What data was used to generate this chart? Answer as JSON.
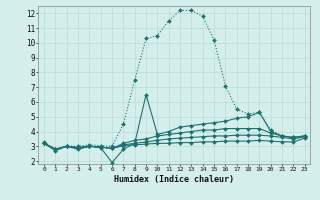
{
  "xlabel": "Humidex (Indice chaleur)",
  "bg_color": "#d4eeeb",
  "line_color": "#1e7070",
  "grid_color": "#b8ddd8",
  "xlim": [
    -0.5,
    23.5
  ],
  "ylim": [
    1.8,
    12.5
  ],
  "yticks": [
    2,
    3,
    4,
    5,
    6,
    7,
    8,
    9,
    10,
    11,
    12
  ],
  "xticks": [
    0,
    1,
    2,
    3,
    4,
    5,
    6,
    7,
    8,
    9,
    10,
    11,
    12,
    13,
    14,
    15,
    16,
    17,
    18,
    19,
    20,
    21,
    22,
    23
  ],
  "lines": [
    {
      "x": [
        0,
        1,
        2,
        3,
        4,
        5,
        6,
        7,
        8,
        9,
        10,
        11,
        12,
        13,
        14,
        15,
        16,
        17,
        18,
        19,
        20,
        21,
        22,
        23
      ],
      "y": [
        3.3,
        2.8,
        3.0,
        3.0,
        3.1,
        3.05,
        3.0,
        4.5,
        7.5,
        10.3,
        10.5,
        11.5,
        12.2,
        12.2,
        11.8,
        10.2,
        7.1,
        5.5,
        5.2,
        5.3,
        4.1,
        3.7,
        3.6,
        3.7
      ],
      "markersize": 2.0,
      "linewidth": 0.8,
      "linestyle": ":"
    },
    {
      "x": [
        0,
        1,
        2,
        3,
        4,
        5,
        6,
        7,
        8,
        9,
        10,
        11,
        12,
        13,
        14,
        15,
        16,
        17,
        18,
        19,
        20,
        21,
        22,
        23
      ],
      "y": [
        3.2,
        2.7,
        3.0,
        2.8,
        3.0,
        2.9,
        1.9,
        2.8,
        3.2,
        6.5,
        3.8,
        4.0,
        4.3,
        4.4,
        4.5,
        4.6,
        4.7,
        4.9,
        5.0,
        5.3,
        4.0,
        3.7,
        3.6,
        3.7
      ],
      "markersize": 2.0,
      "linewidth": 0.8,
      "linestyle": "-"
    },
    {
      "x": [
        0,
        1,
        2,
        3,
        4,
        5,
        6,
        7,
        8,
        9,
        10,
        11,
        12,
        13,
        14,
        15,
        16,
        17,
        18,
        19,
        20,
        21,
        22,
        23
      ],
      "y": [
        3.2,
        2.8,
        3.0,
        2.9,
        3.0,
        2.95,
        2.85,
        3.2,
        3.4,
        3.5,
        3.7,
        3.8,
        3.9,
        4.0,
        4.1,
        4.1,
        4.2,
        4.2,
        4.2,
        4.2,
        3.9,
        3.7,
        3.6,
        3.7
      ],
      "markersize": 2.0,
      "linewidth": 0.8,
      "linestyle": "-"
    },
    {
      "x": [
        0,
        1,
        2,
        3,
        4,
        5,
        6,
        7,
        8,
        9,
        10,
        11,
        12,
        13,
        14,
        15,
        16,
        17,
        18,
        19,
        20,
        21,
        22,
        23
      ],
      "y": [
        3.2,
        2.8,
        3.0,
        2.9,
        3.0,
        2.95,
        2.85,
        3.1,
        3.2,
        3.3,
        3.4,
        3.5,
        3.55,
        3.6,
        3.65,
        3.7,
        3.7,
        3.75,
        3.75,
        3.75,
        3.7,
        3.6,
        3.5,
        3.65
      ],
      "markersize": 2.0,
      "linewidth": 0.8,
      "linestyle": "-"
    },
    {
      "x": [
        0,
        1,
        2,
        3,
        4,
        5,
        6,
        7,
        8,
        9,
        10,
        11,
        12,
        13,
        14,
        15,
        16,
        17,
        18,
        19,
        20,
        21,
        22,
        23
      ],
      "y": [
        3.2,
        2.8,
        3.0,
        2.9,
        3.0,
        2.95,
        2.85,
        3.05,
        3.1,
        3.15,
        3.2,
        3.2,
        3.25,
        3.25,
        3.3,
        3.3,
        3.35,
        3.35,
        3.35,
        3.4,
        3.35,
        3.3,
        3.3,
        3.55
      ],
      "markersize": 2.0,
      "linewidth": 0.8,
      "linestyle": "-"
    }
  ]
}
